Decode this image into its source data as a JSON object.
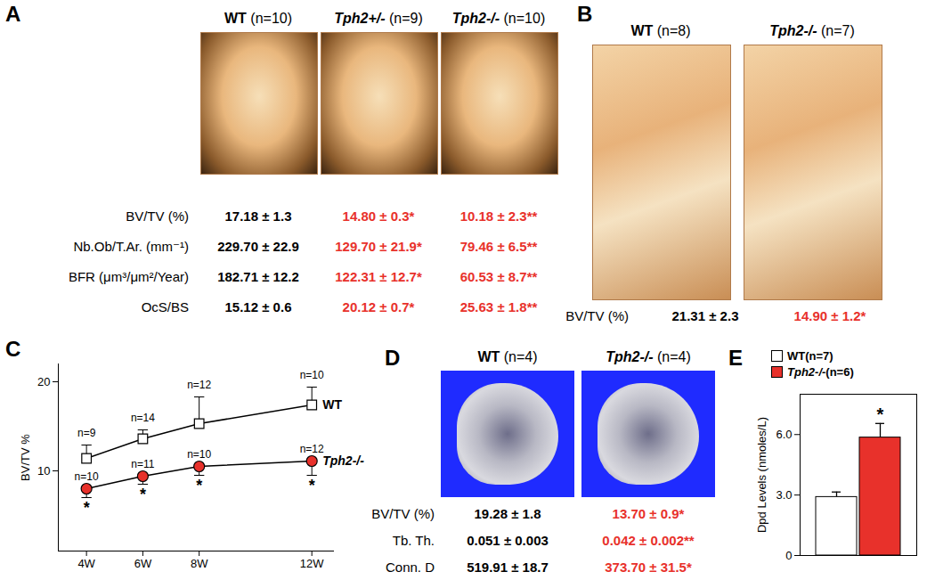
{
  "panel_a": {
    "label": "A",
    "groups": [
      {
        "name": "WT",
        "n": "(n=10)",
        "color": "#000000"
      },
      {
        "name": "Tph2+/-",
        "n": "(n=9)",
        "color": "#e8312b"
      },
      {
        "name": "Tph2-/-",
        "n": "(n=10)",
        "color": "#e8312b"
      }
    ],
    "rows": [
      {
        "label": "BV/TV (%)",
        "values": [
          "17.18 ± 1.3",
          "14.80 ± 0.3*",
          "10.18 ± 2.3**"
        ]
      },
      {
        "label": "Nb.Ob/T.Ar. (mm⁻¹)",
        "values": [
          "229.70 ± 22.9",
          "129.70 ± 21.9*",
          "79.46 ± 6.5**"
        ]
      },
      {
        "label": "BFR (μm³/μm²/Year)",
        "values": [
          "182.71 ± 12.2",
          "122.31 ± 12.7*",
          "60.53 ± 8.7**"
        ]
      },
      {
        "label": "OcS/BS",
        "values": [
          "15.12 ± 0.6",
          "20.12 ± 0.7*",
          "25.63 ± 1.8**"
        ]
      }
    ]
  },
  "panel_b": {
    "label": "B",
    "groups": [
      {
        "name": "WT",
        "n": "(n=8)",
        "color": "#000000"
      },
      {
        "name": "Tph2-/-",
        "n": "(n=7)",
        "color": "#e8312b"
      }
    ],
    "rows": [
      {
        "label": "BV/TV (%)",
        "values": [
          "21.31 ± 2.3",
          "14.90 ± 1.2*"
        ]
      }
    ]
  },
  "panel_d": {
    "label": "D",
    "groups": [
      {
        "name": "WT",
        "n": "(n=4)",
        "color": "#000000"
      },
      {
        "name": "Tph2-/-",
        "n": "(n=4)",
        "color": "#e8312b"
      }
    ],
    "rows": [
      {
        "label": "BV/TV (%)",
        "values": [
          "19.28 ± 1.8",
          "13.70 ± 0.9*"
        ]
      },
      {
        "label": "Tb. Th.",
        "values": [
          "0.051 ± 0.003",
          "0.042 ± 0.002**"
        ]
      },
      {
        "label": "Conn. D",
        "values": [
          "519.91 ± 18.7",
          "373.70 ± 31.5*"
        ]
      }
    ]
  },
  "chart_data": [
    {
      "panel": "C",
      "type": "line",
      "y_label": "BV/TV %",
      "x": [
        4,
        6,
        8,
        12
      ],
      "xlim": [
        3,
        12.8
      ],
      "xticks": [
        {
          "value": 4,
          "label": "4W"
        },
        {
          "value": 6,
          "label": "6W"
        },
        {
          "value": 8,
          "label": "8W"
        },
        {
          "value": 12,
          "label": "12W"
        }
      ],
      "ylim": [
        1,
        22
      ],
      "yticks": [
        10,
        20
      ],
      "series": [
        {
          "name": "WT",
          "color": "#ffffff",
          "marker": "square",
          "values": [
            11.4,
            13.6,
            15.3,
            17.4
          ],
          "errors": [
            1.5,
            1.0,
            3.0,
            2.0
          ],
          "n_labels": [
            "n=9",
            "n=14",
            "n=12",
            "n=10"
          ]
        },
        {
          "name": "Tph2-/-",
          "color": "#e8312b",
          "marker": "circle",
          "values": [
            8.0,
            9.4,
            10.5,
            11.1
          ],
          "errors": [
            1.0,
            0.9,
            1.0,
            1.6
          ],
          "n_labels": [
            "n=10",
            "n=11",
            "n=10",
            "n=12"
          ],
          "significance": [
            "*",
            "*",
            "*",
            "*"
          ]
        }
      ]
    },
    {
      "panel": "E",
      "type": "bar",
      "y_label": "Dpd Levels (nmoles/L)",
      "categories": [
        "WT",
        "Tph2-/-"
      ],
      "n": [
        "(n=7)",
        "(n=6)"
      ],
      "values": [
        2.9,
        5.85
      ],
      "errors": [
        0.25,
        0.7
      ],
      "significance": [
        null,
        "*"
      ],
      "colors": [
        "#ffffff",
        "#e8312b"
      ],
      "ylim": [
        0,
        8
      ],
      "yticks": [
        0,
        {
          "value": 3,
          "label": "3.0"
        },
        {
          "value": 6,
          "label": "6.0"
        }
      ],
      "tick_labels": "y",
      "legend": "top-left"
    }
  ]
}
